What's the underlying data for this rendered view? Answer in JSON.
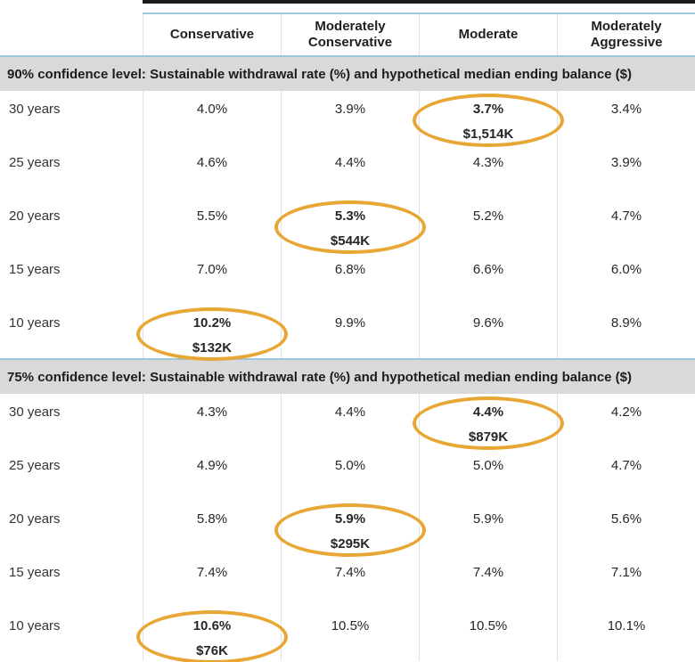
{
  "colors": {
    "accent_teal": "#9cc7d7",
    "band_gray": "#d9d9d9",
    "highlight_gold": "#e8a735",
    "top_bar_black": "#1b1b1b"
  },
  "chart_data": {
    "type": "table",
    "columns": [
      "Conservative",
      "Moderately Conservative",
      "Moderate",
      "Moderately Aggressive"
    ],
    "row_header_unit": "years",
    "highlight_style": "gold ellipse around cell",
    "sections": [
      {
        "title": "90% confidence level: Sustainable withdrawal rate (%) and hypothetical median ending balance ($)",
        "rows": [
          {
            "label": "30 years",
            "cells": [
              {
                "rate": "4.0%"
              },
              {
                "rate": "3.9%"
              },
              {
                "rate": "3.7%",
                "balance": "$1,514K",
                "circled": true
              },
              {
                "rate": "3.4%"
              }
            ]
          },
          {
            "label": "25 years",
            "cells": [
              {
                "rate": "4.6%"
              },
              {
                "rate": "4.4%"
              },
              {
                "rate": "4.3%"
              },
              {
                "rate": "3.9%"
              }
            ]
          },
          {
            "label": "20 years",
            "cells": [
              {
                "rate": "5.5%"
              },
              {
                "rate": "5.3%",
                "balance": "$544K",
                "circled": true
              },
              {
                "rate": "5.2%"
              },
              {
                "rate": "4.7%"
              }
            ]
          },
          {
            "label": "15 years",
            "cells": [
              {
                "rate": "7.0%"
              },
              {
                "rate": "6.8%"
              },
              {
                "rate": "6.6%"
              },
              {
                "rate": "6.0%"
              }
            ]
          },
          {
            "label": "10 years",
            "cells": [
              {
                "rate": "10.2%",
                "balance": "$132K",
                "circled": true
              },
              {
                "rate": "9.9%"
              },
              {
                "rate": "9.6%"
              },
              {
                "rate": "8.9%"
              }
            ]
          }
        ]
      },
      {
        "title": "75% confidence level: Sustainable withdrawal rate (%) and hypothetical median ending balance ($)",
        "rows": [
          {
            "label": "30 years",
            "cells": [
              {
                "rate": "4.3%"
              },
              {
                "rate": "4.4%"
              },
              {
                "rate": "4.4%",
                "balance": "$879K",
                "circled": true
              },
              {
                "rate": "4.2%"
              }
            ]
          },
          {
            "label": "25 years",
            "cells": [
              {
                "rate": "4.9%"
              },
              {
                "rate": "5.0%"
              },
              {
                "rate": "5.0%"
              },
              {
                "rate": "4.7%"
              }
            ]
          },
          {
            "label": "20 years",
            "cells": [
              {
                "rate": "5.8%"
              },
              {
                "rate": "5.9%",
                "balance": "$295K",
                "circled": true
              },
              {
                "rate": "5.9%"
              },
              {
                "rate": "5.6%"
              }
            ]
          },
          {
            "label": "15 years",
            "cells": [
              {
                "rate": "7.4%"
              },
              {
                "rate": "7.4%"
              },
              {
                "rate": "7.4%"
              },
              {
                "rate": "7.1%"
              }
            ]
          },
          {
            "label": "10 years",
            "cells": [
              {
                "rate": "10.6%",
                "balance": "$76K",
                "circled": true
              },
              {
                "rate": "10.5%"
              },
              {
                "rate": "10.5%"
              },
              {
                "rate": "10.1%"
              }
            ]
          }
        ]
      }
    ]
  }
}
